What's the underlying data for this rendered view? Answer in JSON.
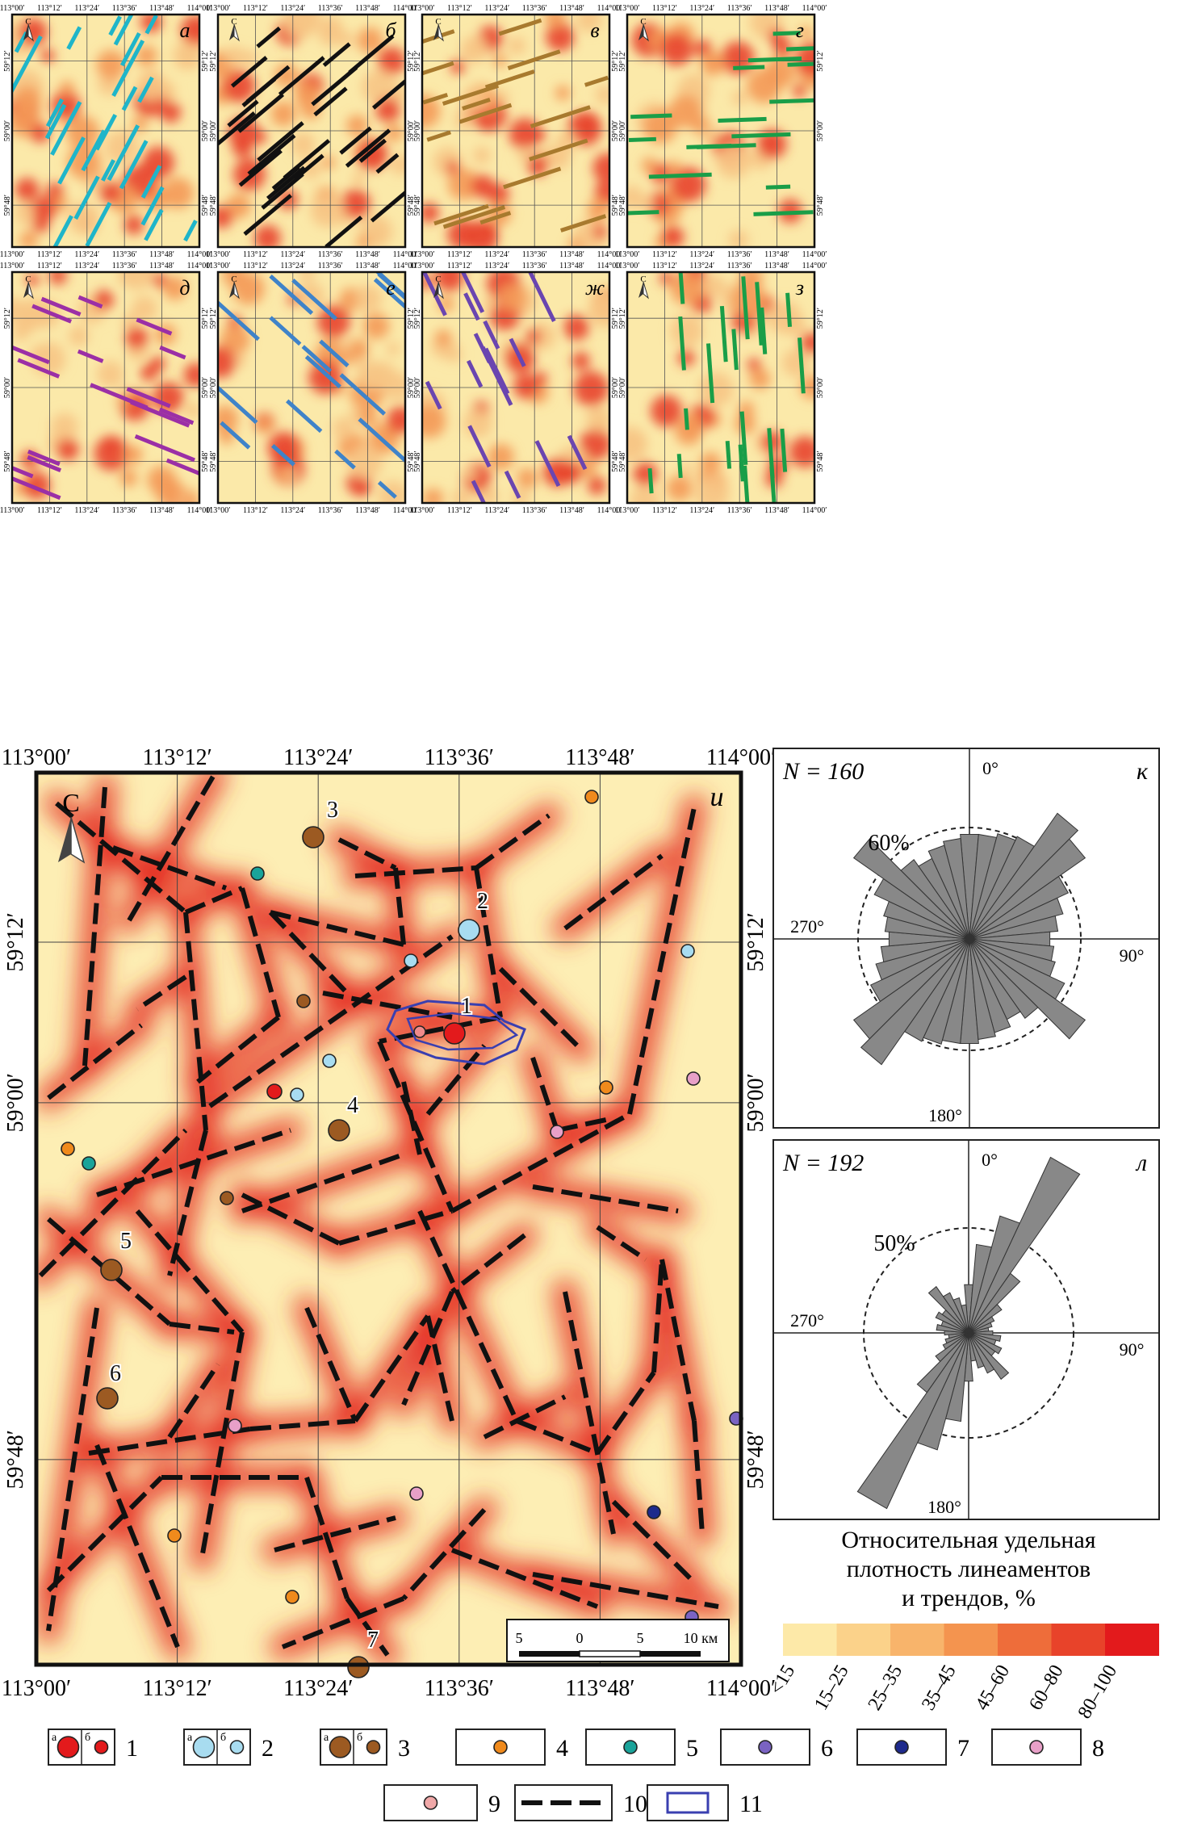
{
  "small_maps": [
    {
      "letter": "а",
      "color": "#1fb5c9"
    },
    {
      "letter": "б",
      "color": "#111111"
    },
    {
      "letter": "в",
      "color": "#a87a2e"
    },
    {
      "letter": "г",
      "color": "#1a9e48"
    },
    {
      "letter": "д",
      "color": "#9b2fa6"
    },
    {
      "letter": "е",
      "color": "#3f83c9"
    },
    {
      "letter": "ж",
      "color": "#6a45b0"
    },
    {
      "letter": "з",
      "color": "#1a9e48"
    }
  ],
  "small_lon_ticks": [
    "113°00′",
    "113°12′",
    "113°24′",
    "113°36′",
    "113°48′",
    "114°00′"
  ],
  "small_lat_ticks": [
    "59°12′",
    "59°00′",
    "59°48′"
  ],
  "north_letter": "С",
  "main_map": {
    "letter": "и",
    "lon_ticks": [
      "113°00′",
      "113°12′",
      "113°24′",
      "113°36′",
      "113°48′",
      "114°00′"
    ],
    "lat_ticks": [
      "59°12′",
      "59°00′",
      "59°48′"
    ],
    "sites": [
      "1",
      "2",
      "3",
      "4",
      "5",
      "6",
      "7"
    ],
    "scale": {
      "labels": [
        "5",
        "0",
        "5",
        "10 км"
      ]
    }
  },
  "rose_k": {
    "letter": "к",
    "n_label": "N = 160",
    "ring": "60%",
    "north": "0°",
    "east": "90°",
    "south": "180°",
    "west": "270°"
  },
  "rose_l": {
    "letter": "л",
    "n_label": "N = 192",
    "ring": "50%",
    "north": "0°",
    "east": "90°",
    "south": "180°",
    "west": "270°"
  },
  "density_title": [
    "Относительная удельная",
    "плотность линеаментов",
    "и трендов, %"
  ],
  "density_classes": [
    "<15",
    "15–25",
    "25–35",
    "35–45",
    "45–60",
    "60–80",
    "80–100"
  ],
  "density_colors": [
    "#fde9a8",
    "#fbd28a",
    "#f8b46b",
    "#f4944f",
    "#ee6d3a",
    "#e8432a",
    "#e31a1c"
  ],
  "legend": [
    {
      "num": "1",
      "a": "а",
      "b": "б",
      "fill": "#e31a1c"
    },
    {
      "num": "2",
      "a": "а",
      "b": "б",
      "fill": "#a8dcf0"
    },
    {
      "num": "3",
      "a": "а",
      "b": "б",
      "fill": "#9c5a22"
    },
    {
      "num": "4",
      "fill": "#f08a1c"
    },
    {
      "num": "5",
      "fill": "#1aa39a"
    },
    {
      "num": "6",
      "fill": "#7a63c2"
    },
    {
      "num": "7",
      "fill": "#1e2a8c"
    },
    {
      "num": "8",
      "fill": "#e8a0c8"
    },
    {
      "num": "9",
      "fill": "#f0a8a8"
    },
    {
      "num": "10"
    },
    {
      "num": "11"
    }
  ]
}
